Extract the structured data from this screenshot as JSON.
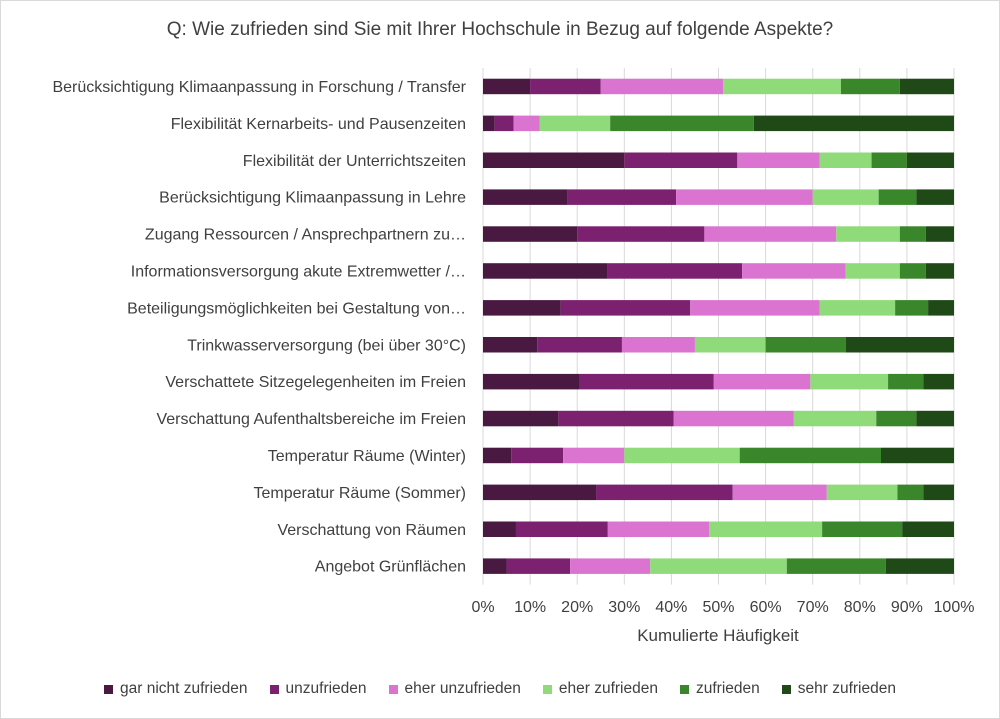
{
  "chart_data": {
    "type": "bar",
    "orientation": "horizontal",
    "stacked": true,
    "title": "Q: Wie zufrieden sind Sie mit Ihrer Hochschule in Bezug auf folgende Aspekte?",
    "xlabel": "Kumulierte Häufigkeit",
    "ylabel": "",
    "xlim": [
      0,
      100
    ],
    "x_ticks": [
      "0%",
      "10%",
      "20%",
      "30%",
      "40%",
      "50%",
      "60%",
      "70%",
      "80%",
      "90%",
      "100%"
    ],
    "grid": "vertical",
    "legend_position": "bottom",
    "categories": [
      "Berücksichtigung Klimaanpassung in Forschung / Transfer",
      "Flexibilität Kernarbeits- und Pausenzeiten",
      "Flexibilität der Unterrichtszeiten",
      "Berücksichtigung Klimaanpassung in Lehre",
      "Zugang Ressourcen / Ansprechpartnern zu…",
      "Informationsversorgung akute Extremwetter /…",
      "Beteiligungsmöglichkeiten bei Gestaltung von…",
      "Trinkwasserversorgung (bei über 30°C)",
      "Verschattete Sitzegelegenheiten im Freien",
      "Verschattung Aufenthaltsbereiche im Freien",
      "Temperatur Räume (Winter)",
      "Temperatur Räume (Sommer)",
      "Verschattung von Räumen",
      "Angebot Grünflächen"
    ],
    "series": [
      {
        "name": "gar nicht zufrieden",
        "color": "#4a1942",
        "values": [
          10,
          2.5,
          30,
          18,
          20,
          26.5,
          16.5,
          11.5,
          20.5,
          16,
          6,
          24,
          7,
          5
        ]
      },
      {
        "name": "unzufrieden",
        "color": "#7b2170",
        "values": [
          15,
          4,
          24,
          23,
          27,
          28.5,
          27.5,
          18,
          28.5,
          24.5,
          11,
          29,
          19.5,
          13.5
        ]
      },
      {
        "name": "eher unzufrieden",
        "color": "#da74d0",
        "values": [
          26,
          5.5,
          17.5,
          29,
          28,
          22,
          27.5,
          15.5,
          20.5,
          25.5,
          13,
          20,
          21.5,
          17
        ]
      },
      {
        "name": "eher zufrieden",
        "color": "#8fdb7a",
        "values": [
          25,
          15,
          11,
          14,
          13.5,
          11.5,
          16,
          15,
          16.5,
          17.5,
          24.5,
          15,
          24,
          29
        ]
      },
      {
        "name": "zufrieden",
        "color": "#3a862a",
        "values": [
          12.5,
          30.5,
          7.5,
          8,
          5.5,
          5.5,
          7,
          17,
          7.5,
          8.5,
          30,
          5.5,
          17,
          21
        ]
      },
      {
        "name": "sehr zufrieden",
        "color": "#1f4a18",
        "values": [
          11.5,
          42.5,
          10,
          8,
          6,
          6,
          5.5,
          23,
          6.5,
          8,
          15.5,
          6.5,
          11,
          14.5
        ]
      }
    ]
  }
}
